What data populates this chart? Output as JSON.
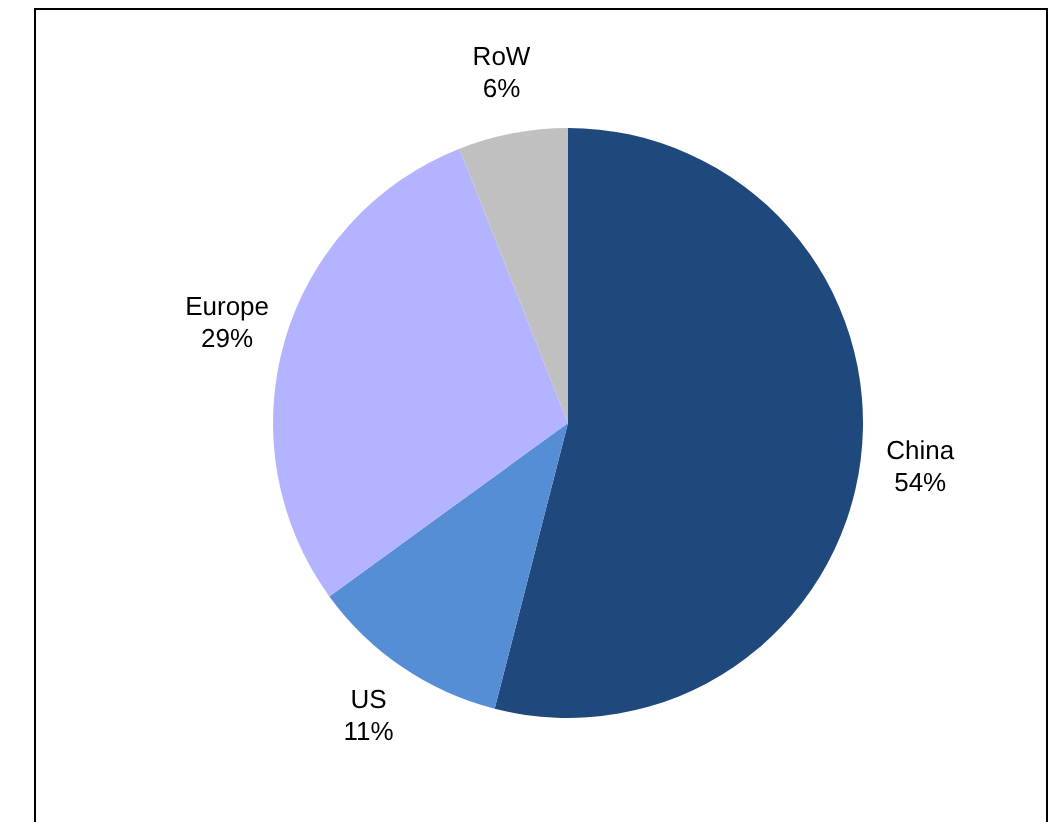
{
  "chart_data": {
    "type": "pie",
    "categories": [
      "China",
      "US",
      "Europe",
      "RoW"
    ],
    "values": [
      54,
      11,
      29,
      6
    ],
    "value_labels": [
      "54%",
      "11%",
      "29%",
      "6%"
    ],
    "colors": [
      "#1f497d",
      "#558ed5",
      "#b3b3ff",
      "#c0c0c0"
    ],
    "legend": false
  }
}
